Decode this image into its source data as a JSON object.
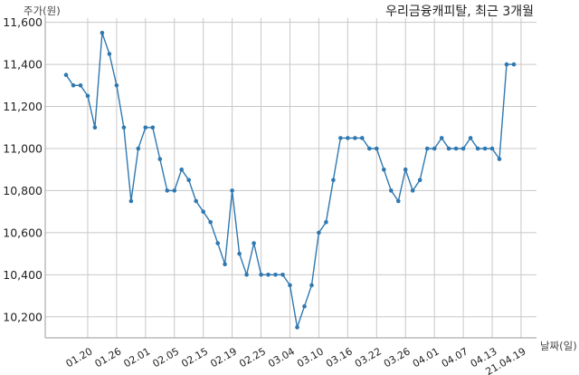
{
  "chart_data": {
    "type": "line",
    "title": "우리금융캐피탈, 최근 3개월",
    "ylabel": "주가(원)",
    "xlabel": "날짜(일)",
    "ylim": [
      10100,
      11620
    ],
    "yticks": [
      10200,
      10400,
      10600,
      10800,
      11000,
      11200,
      11400,
      11600
    ],
    "ytick_labels": [
      "10,200",
      "10,400",
      "10,600",
      "10,800",
      "11,000",
      "11,200",
      "11,400",
      "11,600"
    ],
    "xtick_labels": [
      "01.20",
      "01.26",
      "02.01",
      "02.05",
      "02.15",
      "02.19",
      "02.25",
      "03.04",
      "03.10",
      "03.16",
      "03.22",
      "03.26",
      "04.01",
      "04.07",
      "04.13",
      "21.04.19"
    ],
    "xtick_positions": [
      3,
      7,
      11,
      15,
      19,
      23,
      27,
      31,
      35,
      39,
      43,
      47,
      51,
      55,
      59,
      63
    ],
    "grid": true,
    "series": [
      {
        "values": [
          11350,
          11300,
          11300,
          11250,
          11100,
          11550,
          11450,
          11300,
          11100,
          10750,
          11000,
          11100,
          11100,
          10950,
          10800,
          10800,
          10900,
          10850,
          10750,
          10700,
          10650,
          10550,
          10450,
          10800,
          10500,
          10400,
          10550,
          10400,
          10400,
          10400,
          10400,
          10350,
          10150,
          10250,
          10350,
          10600,
          10650,
          10850,
          11050,
          11050,
          11050,
          11050,
          11000,
          11000,
          10900,
          10800,
          10750,
          10900,
          10800,
          10850,
          11000,
          11000,
          11050,
          11000,
          11000,
          11000,
          11050,
          11000,
          11000,
          11000,
          10950,
          11400,
          11400
        ]
      }
    ]
  }
}
